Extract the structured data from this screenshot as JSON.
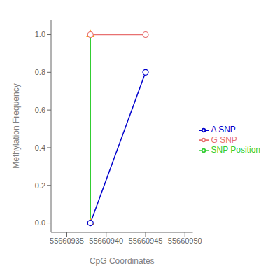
{
  "chart_data": {
    "type": "line",
    "xlabel": "CpG Coordinates",
    "ylabel": "Methylation Frequency",
    "xlim": [
      55660933,
      55660951
    ],
    "ylim": [
      -0.05,
      1.08
    ],
    "xticks": [
      55660935,
      55660940,
      55660945,
      55660950
    ],
    "yticks": [
      {
        "value": 0.0,
        "label": "0.0"
      },
      0.2,
      0.4,
      0.6,
      0.8,
      {
        "value": 1.0,
        "label": "1.0"
      }
    ],
    "series": [
      {
        "name": "A SNP",
        "color": "#0000CD",
        "x": [
          55660938,
          55660945
        ],
        "values": [
          0.0,
          0.8
        ],
        "marker": "circle",
        "line_style": "solid"
      },
      {
        "name": "G SNP",
        "color": "#E87070",
        "x": [
          55660938,
          55660945
        ],
        "values": [
          1.0,
          1.0
        ],
        "marker": "circle",
        "line_style": "solid"
      },
      {
        "name": "SNP Position",
        "color": "#32CD32",
        "x": [
          55660938,
          55660938
        ],
        "values": [
          0.0,
          1.0
        ],
        "marker": "none",
        "line_style": "solid"
      }
    ],
    "markers": {
      "color": "#FFA500",
      "marker": "triangle",
      "x": [
        55660938,
        55660938
      ],
      "values": [
        0.0,
        1.0
      ]
    },
    "legend": "right",
    "grid": false
  }
}
